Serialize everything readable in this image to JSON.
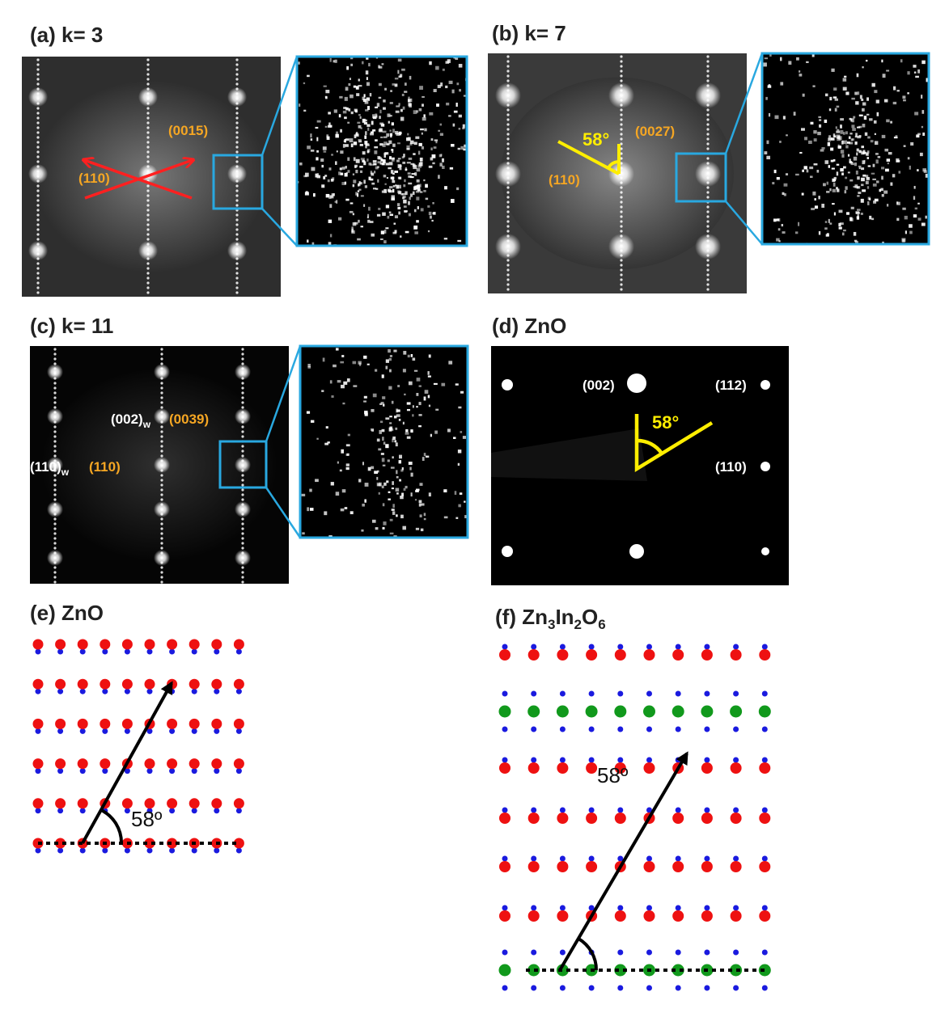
{
  "panels": [
    {
      "label": "(a) k= 3",
      "annotations": [
        "(0015)",
        "(110)"
      ]
    },
    {
      "label": "(b) k= 7",
      "annotations": [
        "58°",
        "(0027)",
        "(110)"
      ]
    },
    {
      "label": "(c) k= 11",
      "annotations": [
        {
          "text": "(002)",
          "sub": "w"
        },
        "(0039)",
        {
          "text": "(110)",
          "sub": "w"
        },
        "(110)"
      ]
    },
    {
      "label": "(d) ZnO",
      "annotations": [
        "(002)",
        "(112)",
        "(110)",
        "58°"
      ]
    },
    {
      "label": "(e) ZnO",
      "annotations": [
        "58º"
      ]
    },
    {
      "label_parts": [
        "(f) Zn",
        "3",
        "In",
        "2",
        "O",
        "6"
      ],
      "annotations": [
        "58º"
      ]
    }
  ]
}
